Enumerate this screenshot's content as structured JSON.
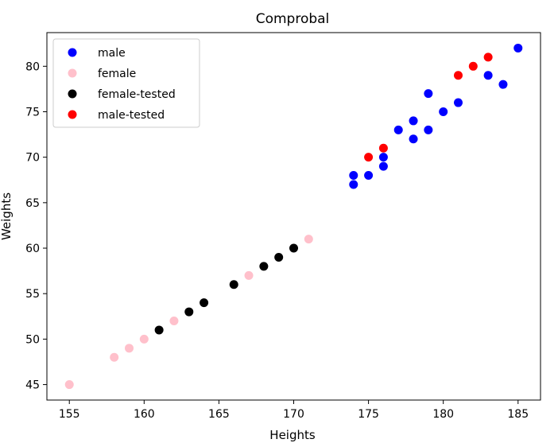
{
  "chart_data": {
    "type": "scatter",
    "title": "Comprobal",
    "xlabel": "Heights",
    "ylabel": "Weights",
    "xlim": [
      153.5,
      186.5
    ],
    "ylim": [
      43.3,
      83.7
    ],
    "xticks": [
      155,
      160,
      165,
      170,
      175,
      180,
      185
    ],
    "yticks": [
      45,
      50,
      55,
      60,
      65,
      70,
      75,
      80
    ],
    "grid": false,
    "legend": "top-left",
    "series": [
      {
        "name": "male",
        "color": "#0000ff",
        "x": [
          174,
          174,
          175,
          176,
          176,
          177,
          178,
          178,
          179,
          179,
          180,
          181,
          183,
          184,
          185
        ],
        "y": [
          67,
          68,
          68,
          69,
          70,
          73,
          72,
          74,
          73,
          77,
          75,
          76,
          79,
          78,
          82
        ]
      },
      {
        "name": "female",
        "color": "#ffc0cb",
        "x": [
          155,
          158,
          159,
          160,
          162,
          167,
          171
        ],
        "y": [
          45,
          48,
          49,
          50,
          52,
          57,
          61
        ]
      },
      {
        "name": "female-tested",
        "color": "#000000",
        "x": [
          161,
          163,
          164,
          166,
          168,
          169,
          170
        ],
        "y": [
          51,
          53,
          54,
          56,
          58,
          59,
          60
        ]
      },
      {
        "name": "male-tested",
        "color": "#ff0000",
        "x": [
          175,
          176,
          181,
          182,
          183
        ],
        "y": [
          70,
          71,
          79,
          80,
          81
        ]
      }
    ]
  }
}
